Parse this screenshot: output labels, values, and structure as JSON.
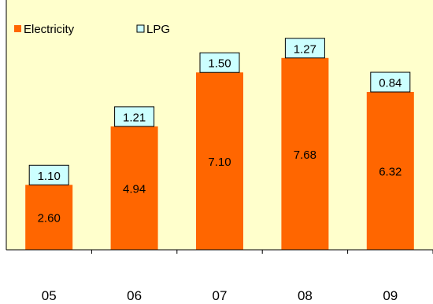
{
  "chart_data": {
    "type": "bar",
    "stacked": true,
    "categories": [
      "05",
      "06",
      "07",
      "08",
      "09"
    ],
    "series": [
      {
        "name": "Electricity",
        "values": [
          2.6,
          4.94,
          7.1,
          7.68,
          6.32
        ],
        "color": "#FF6600",
        "labels": [
          "2.60",
          "4.94",
          "7.10",
          "7.68",
          "6.32"
        ]
      },
      {
        "name": "LPG",
        "values": [
          1.1,
          1.21,
          1.5,
          1.27,
          0.84
        ],
        "color": "#CCFFFF",
        "labels": [
          "1.10",
          "1.21",
          "1.50",
          "1.27",
          "0.84"
        ]
      }
    ],
    "ylim": [
      0,
      10
    ],
    "legend_position": "top-left",
    "plot_background": "#FFFFCC",
    "grid": false
  }
}
